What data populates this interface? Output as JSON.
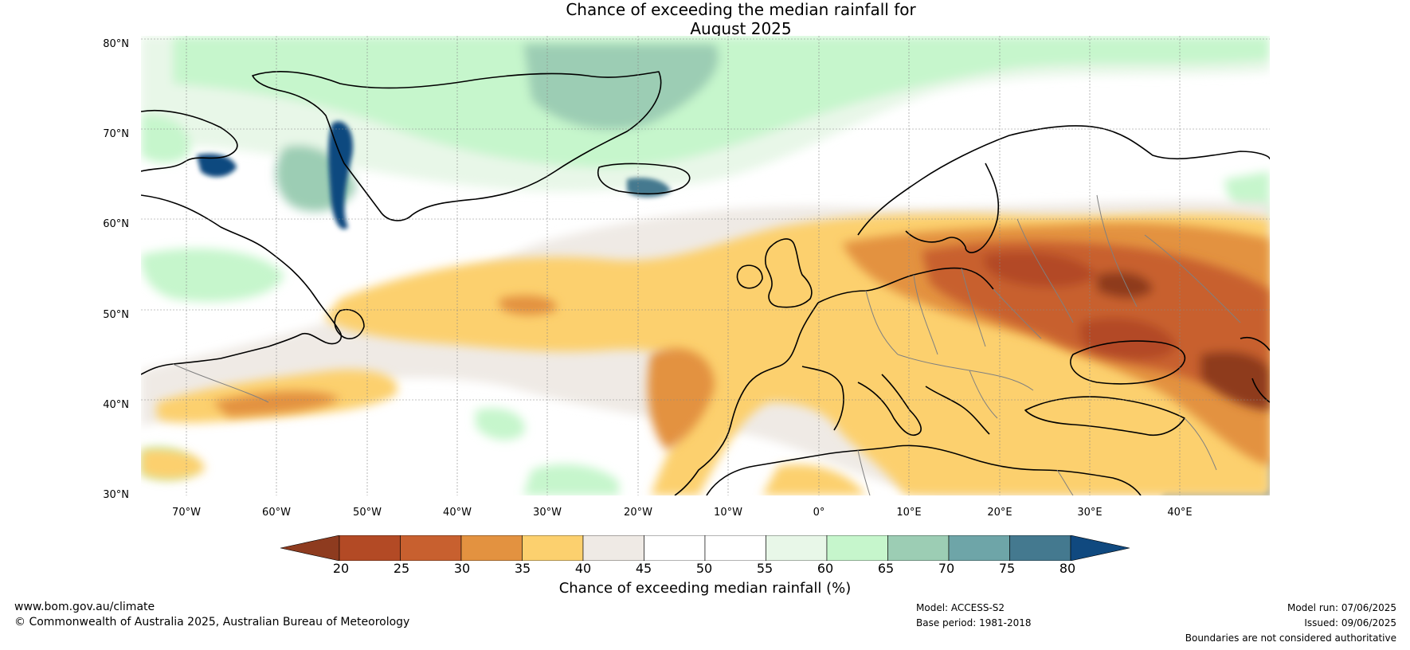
{
  "title": {
    "line1": "Chance of exceeding the median rainfall for",
    "line2": "August 2025"
  },
  "map": {
    "lat_labels": [
      "80°N",
      "70°N",
      "60°N",
      "50°N",
      "40°N",
      "30°N"
    ],
    "lon_labels": [
      "70°W",
      "60°W",
      "50°W",
      "40°W",
      "30°W",
      "20°W",
      "10°W",
      "0°",
      "10°E",
      "20°E",
      "30°E",
      "40°E"
    ],
    "lat_range": [
      30,
      81
    ],
    "lon_range": [
      -75,
      50
    ],
    "colors": {
      "land_outline": "#000000",
      "border": "#808080",
      "grid": "#888888"
    }
  },
  "colorbar": {
    "ticks": [
      "20",
      "25",
      "30",
      "35",
      "40",
      "45",
      "50",
      "55",
      "60",
      "65",
      "70",
      "75",
      "80"
    ],
    "tick_values": [
      20,
      25,
      30,
      35,
      40,
      45,
      50,
      55,
      60,
      65,
      70,
      75,
      80
    ],
    "colors": [
      "#8e3b1f",
      "#b34a25",
      "#c8602f",
      "#e39240",
      "#fcd06e",
      "#efeae5",
      "#ffffff",
      "#ffffff",
      "#e8f7e8",
      "#c6f6cc",
      "#9ccdb4",
      "#6ea5a8",
      "#44798f",
      "#10497f"
    ],
    "label": "Chance of exceeding median rainfall (%)"
  },
  "footer": {
    "website": "www.bom.gov.au/climate",
    "copyright": "© Commonwealth of Australia 2025, Australian Bureau of Meteorology",
    "model": "Model: ACCESS-S2",
    "base_period": "Base period: 1981-2018",
    "model_run": "Model run: 07/06/2025",
    "issued": "Issued: 09/06/2025",
    "disclaimer": "Boundaries are not considered authoritative"
  }
}
